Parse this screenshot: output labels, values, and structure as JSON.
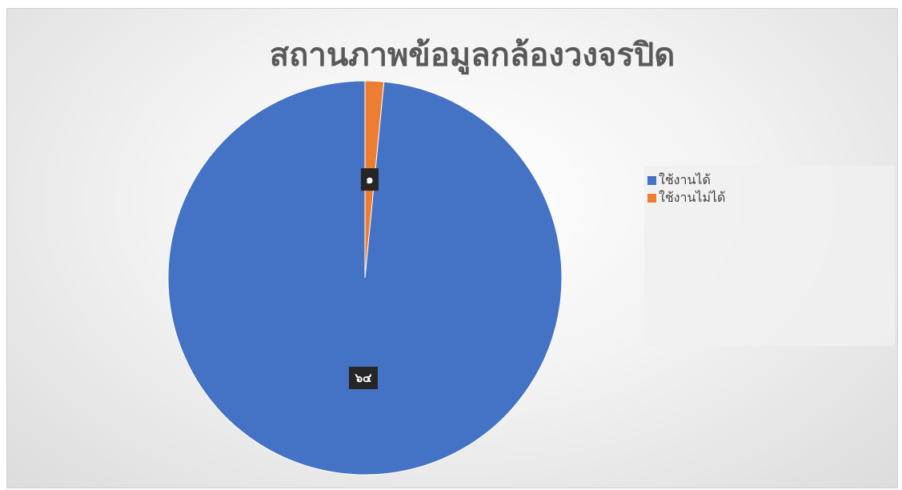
{
  "chart_data": {
    "type": "pie",
    "title": "สถานภาพข้อมูลกล้องวงจรปิด",
    "categories": [
      "ใช้งานได้",
      "ใช้งานไม่ได้"
    ],
    "values": [
      64,
      1
    ],
    "value_labels": [
      "๖๔",
      "๑"
    ],
    "colors": [
      "#4472C4",
      "#ED7D31"
    ],
    "legend": "right",
    "start_angle_deg": 0,
    "direction": "clockwise"
  }
}
